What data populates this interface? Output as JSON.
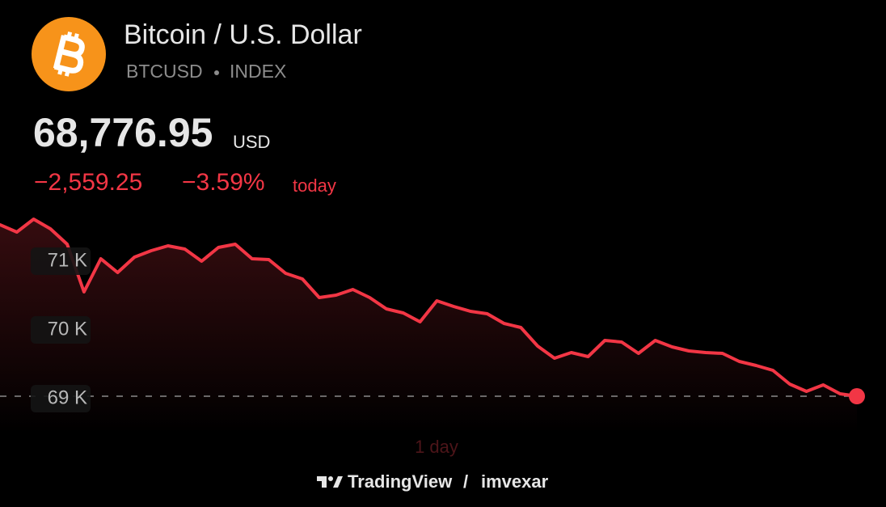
{
  "header": {
    "title": "Bitcoin / U.S. Dollar",
    "symbol": "BTCUSD",
    "exchange": "INDEX",
    "price": "68,776.95",
    "currency": "USD",
    "change": "−2,559.25",
    "change_percent": "−3.59%",
    "period": "today"
  },
  "chart_data": {
    "type": "line",
    "series": [
      {
        "color": "#f23645",
        "values": [
          71529,
          71424,
          71612,
          71471,
          71247,
          70553,
          71035,
          70835,
          71059,
          71153,
          71224,
          71176,
          71000,
          71200,
          71247,
          71035,
          71024,
          70824,
          70741,
          70471,
          70506,
          70588,
          70471,
          70306,
          70247,
          70118,
          70424,
          70341,
          70271,
          70235,
          70094,
          70035,
          69765,
          69588,
          69671,
          69612,
          69847,
          69824,
          69659,
          69847,
          69753,
          69694,
          69671,
          69659,
          69541,
          69482,
          69412,
          69212,
          69106,
          69200,
          69071,
          69035
        ]
      }
    ],
    "ylim": [
      68500,
      71800
    ],
    "yticks": [
      {
        "value": 69000,
        "label": "69 K"
      },
      {
        "value": 70000,
        "label": "70 K"
      },
      {
        "value": 71000,
        "label": "71 K"
      }
    ],
    "range": "1 day"
  },
  "footer": {
    "brand": "TradingView",
    "separator": "/",
    "author": "imvexar"
  }
}
